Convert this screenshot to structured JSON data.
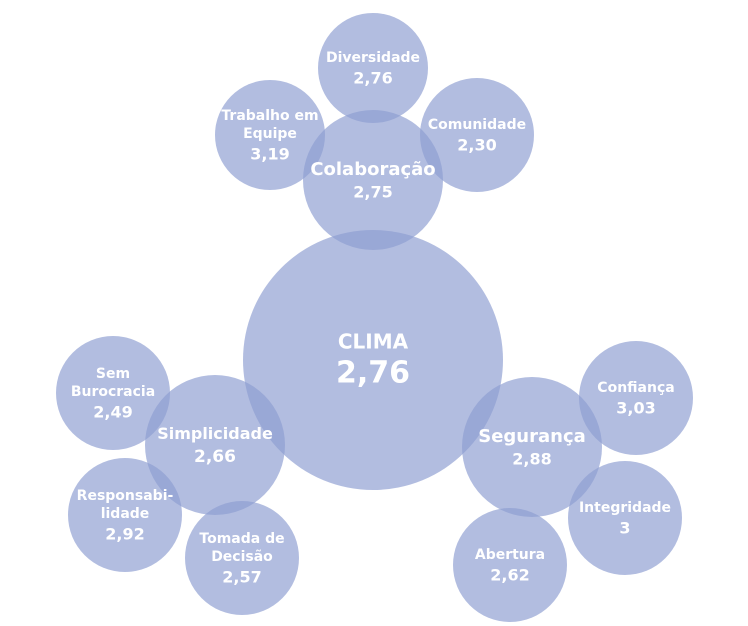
{
  "nodes": [
    {
      "lines": [
        "CLIMA"
      ],
      "value": "2,76"
    },
    {
      "lines": [
        "Colaboração"
      ],
      "value": "2,75"
    },
    {
      "lines": [
        "Diversidade"
      ],
      "value": "2,76"
    },
    {
      "lines": [
        "Trabalho em",
        "Equipe"
      ],
      "value": "3,19"
    },
    {
      "lines": [
        "Comunidade"
      ],
      "value": "2,30"
    },
    {
      "lines": [
        "Simplicidade"
      ],
      "value": "2,66"
    },
    {
      "lines": [
        "Sem",
        "Burocracia"
      ],
      "value": "2,49"
    },
    {
      "lines": [
        "Responsabi-",
        "lidade"
      ],
      "value": "2,92"
    },
    {
      "lines": [
        "Tomada de",
        "Decisão"
      ],
      "value": "2,57"
    },
    {
      "lines": [
        "Segurança"
      ],
      "value": "2,88"
    },
    {
      "lines": [
        "Confiança"
      ],
      "value": "3,03"
    },
    {
      "lines": [
        "Integridade"
      ],
      "value": "3"
    },
    {
      "lines": [
        "Abertura"
      ],
      "value": "2,62"
    }
  ]
}
